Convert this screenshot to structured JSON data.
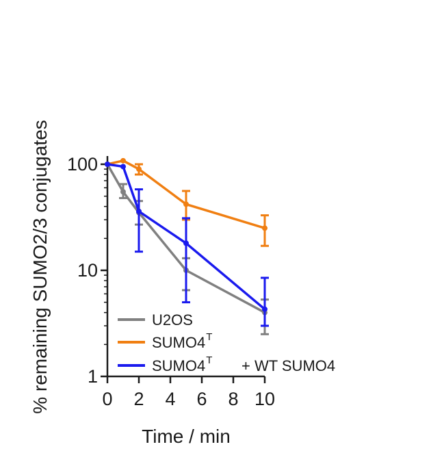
{
  "chart_data": {
    "type": "line",
    "xlabel": "Time / min",
    "ylabel": "% remaining SUMO2/3 conjugates",
    "xlim": [
      0,
      10
    ],
    "ylim": [
      1,
      100
    ],
    "y_scale": "log",
    "x_ticks": [
      0,
      2,
      4,
      6,
      8,
      10
    ],
    "y_ticks": [
      1,
      10,
      100
    ],
    "x_tick_labels": [
      "0",
      "2",
      "4",
      "6",
      "8",
      "10"
    ],
    "y_tick_labels": [
      "1",
      "10",
      "100"
    ],
    "grid": false,
    "legend_position": "bottom-left",
    "series": [
      {
        "name": "U2OS",
        "color": "#808080",
        "x": [
          0,
          1,
          2,
          5,
          10
        ],
        "y": [
          100,
          55,
          35,
          10,
          4
        ],
        "err_low": [
          100,
          48,
          27,
          6.5,
          2.5
        ],
        "err_high": [
          100,
          65,
          45,
          13,
          5.3
        ]
      },
      {
        "name": "SUMO4",
        "name_sup": "T",
        "color": "#f07f12",
        "x": [
          0,
          1,
          2,
          5,
          10
        ],
        "y": [
          100,
          108,
          90,
          42,
          25
        ],
        "err_low": [
          100,
          108,
          80,
          30,
          17
        ],
        "err_high": [
          100,
          108,
          100,
          56,
          33
        ]
      },
      {
        "name": "SUMO4",
        "name_sup": "T",
        "name_suffix": "+ WT SUMO4",
        "color": "#1a1aee",
        "x": [
          0,
          1,
          2,
          5,
          10
        ],
        "y": [
          100,
          95,
          36,
          18,
          4.3
        ],
        "err_low": [
          100,
          95,
          15,
          5,
          3
        ],
        "err_high": [
          100,
          95,
          58,
          31,
          8.5
        ]
      }
    ]
  }
}
